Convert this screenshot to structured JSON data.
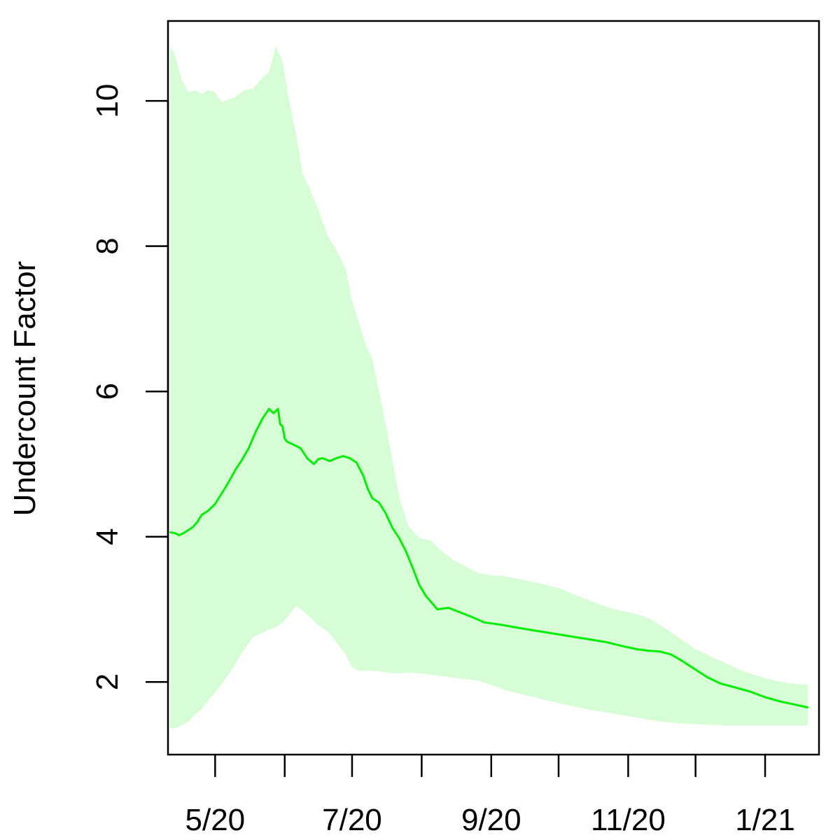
{
  "chart_data": {
    "type": "line",
    "title": "",
    "xlabel": "",
    "ylabel": "Undercount Factor",
    "x_axis": {
      "type": "date",
      "range": [
        "2020-04-10",
        "2021-01-25"
      ],
      "major_ticks": [
        "2020-05-01",
        "2020-07-01",
        "2020-09-01",
        "2020-11-01",
        "2021-01-01"
      ],
      "major_tick_labels": [
        "5/20",
        "7/20",
        "9/20",
        "11/20",
        "1/21"
      ],
      "minor_ticks": [
        "2020-06-01",
        "2020-08-01",
        "2020-10-01",
        "2020-12-01"
      ]
    },
    "y_axis": {
      "range": [
        1.0,
        11.1
      ],
      "ticks": [
        2,
        4,
        6,
        8,
        10
      ],
      "tick_labels": [
        "2",
        "4",
        "6",
        "8",
        "10"
      ]
    },
    "grid": false,
    "legend": "none",
    "colors": {
      "line": "#00ee00",
      "band": "#d7fdd7",
      "axis": "#000000"
    },
    "series": [
      {
        "style": "line",
        "x": [
          "2020-04-11",
          "2020-04-13",
          "2020-04-15",
          "2020-04-17",
          "2020-04-19",
          "2020-04-21",
          "2020-04-23",
          "2020-04-25",
          "2020-04-28",
          "2020-05-01",
          "2020-05-04",
          "2020-05-07",
          "2020-05-10",
          "2020-05-13",
          "2020-05-16",
          "2020-05-19",
          "2020-05-22",
          "2020-05-25",
          "2020-05-27",
          "2020-05-29",
          "2020-05-30",
          "2020-05-31",
          "2020-06-01",
          "2020-06-02",
          "2020-06-04",
          "2020-06-08",
          "2020-06-11",
          "2020-06-14",
          "2020-06-16",
          "2020-06-18",
          "2020-06-21",
          "2020-06-24",
          "2020-06-27",
          "2020-06-30",
          "2020-07-03",
          "2020-07-06",
          "2020-07-08",
          "2020-07-10",
          "2020-07-13",
          "2020-07-16",
          "2020-07-19",
          "2020-07-22",
          "2020-07-25",
          "2020-07-28",
          "2020-07-31",
          "2020-08-03",
          "2020-08-08",
          "2020-08-13",
          "2020-08-18",
          "2020-08-23",
          "2020-08-29",
          "2020-09-05",
          "2020-09-12",
          "2020-09-20",
          "2020-09-28",
          "2020-10-06",
          "2020-10-14",
          "2020-10-22",
          "2020-10-30",
          "2020-11-05",
          "2020-11-10",
          "2020-11-15",
          "2020-11-20",
          "2020-11-25",
          "2020-11-30",
          "2020-12-06",
          "2020-12-12",
          "2020-12-18",
          "2020-12-25",
          "2021-01-01",
          "2021-01-08",
          "2021-01-14",
          "2021-01-20"
        ],
        "y": [
          4.06,
          4.05,
          4.02,
          4.05,
          4.09,
          4.13,
          4.2,
          4.3,
          4.36,
          4.45,
          4.6,
          4.75,
          4.92,
          5.06,
          5.22,
          5.44,
          5.62,
          5.76,
          5.7,
          5.76,
          5.55,
          5.52,
          5.35,
          5.31,
          5.28,
          5.22,
          5.08,
          5.0,
          5.07,
          5.08,
          5.04,
          5.08,
          5.11,
          5.08,
          5.02,
          4.84,
          4.66,
          4.53,
          4.47,
          4.32,
          4.12,
          3.98,
          3.8,
          3.57,
          3.33,
          3.18,
          3.0,
          3.02,
          2.96,
          2.9,
          2.82,
          2.79,
          2.75,
          2.71,
          2.67,
          2.63,
          2.59,
          2.55,
          2.49,
          2.45,
          2.43,
          2.42,
          2.38,
          2.29,
          2.19,
          2.07,
          1.98,
          1.93,
          1.87,
          1.79,
          1.73,
          1.69,
          1.65
        ]
      },
      {
        "style": "band",
        "x": [
          "2020-04-11",
          "2020-04-13",
          "2020-04-16",
          "2020-04-19",
          "2020-04-22",
          "2020-04-25",
          "2020-04-28",
          "2020-05-01",
          "2020-05-04",
          "2020-05-07",
          "2020-05-10",
          "2020-05-14",
          "2020-05-18",
          "2020-05-22",
          "2020-05-25",
          "2020-05-28",
          "2020-05-31",
          "2020-06-03",
          "2020-06-06",
          "2020-06-09",
          "2020-06-12",
          "2020-06-16",
          "2020-06-20",
          "2020-06-24",
          "2020-06-28",
          "2020-07-01",
          "2020-07-04",
          "2020-07-07",
          "2020-07-10",
          "2020-07-13",
          "2020-07-16",
          "2020-07-19",
          "2020-07-22",
          "2020-07-26",
          "2020-07-31",
          "2020-08-05",
          "2020-08-10",
          "2020-08-15",
          "2020-08-20",
          "2020-08-26",
          "2020-09-01",
          "2020-09-08",
          "2020-09-16",
          "2020-09-24",
          "2020-10-02",
          "2020-10-10",
          "2020-10-18",
          "2020-10-26",
          "2020-11-03",
          "2020-11-10",
          "2020-11-17",
          "2020-11-24",
          "2020-12-01",
          "2020-12-08",
          "2020-12-15",
          "2020-12-22",
          "2020-12-29",
          "2021-01-05",
          "2021-01-12",
          "2021-01-20"
        ],
        "upper": [
          10.75,
          10.65,
          10.3,
          10.12,
          10.15,
          10.1,
          10.15,
          10.12,
          9.98,
          10.02,
          10.05,
          10.15,
          10.17,
          10.32,
          10.4,
          10.75,
          10.55,
          10.0,
          9.55,
          9.0,
          8.8,
          8.5,
          8.15,
          7.95,
          7.7,
          7.25,
          6.95,
          6.65,
          6.45,
          6.0,
          5.55,
          5.05,
          4.55,
          4.15,
          3.98,
          3.95,
          3.8,
          3.68,
          3.6,
          3.5,
          3.47,
          3.45,
          3.4,
          3.35,
          3.28,
          3.18,
          3.08,
          3.0,
          2.95,
          2.88,
          2.75,
          2.6,
          2.45,
          2.35,
          2.25,
          2.15,
          2.08,
          2.02,
          1.98,
          1.96
        ],
        "lower": [
          1.36,
          1.36,
          1.4,
          1.45,
          1.55,
          1.63,
          1.75,
          1.85,
          1.98,
          2.1,
          2.25,
          2.45,
          2.62,
          2.68,
          2.72,
          2.75,
          2.82,
          2.92,
          3.05,
          2.98,
          2.9,
          2.78,
          2.7,
          2.55,
          2.38,
          2.2,
          2.15,
          2.16,
          2.15,
          2.15,
          2.13,
          2.12,
          2.12,
          2.13,
          2.12,
          2.1,
          2.08,
          2.06,
          2.04,
          2.02,
          1.96,
          1.88,
          1.82,
          1.76,
          1.7,
          1.65,
          1.6,
          1.56,
          1.52,
          1.48,
          1.45,
          1.43,
          1.42,
          1.41,
          1.4,
          1.4,
          1.4,
          1.4,
          1.4,
          1.4
        ]
      }
    ]
  }
}
